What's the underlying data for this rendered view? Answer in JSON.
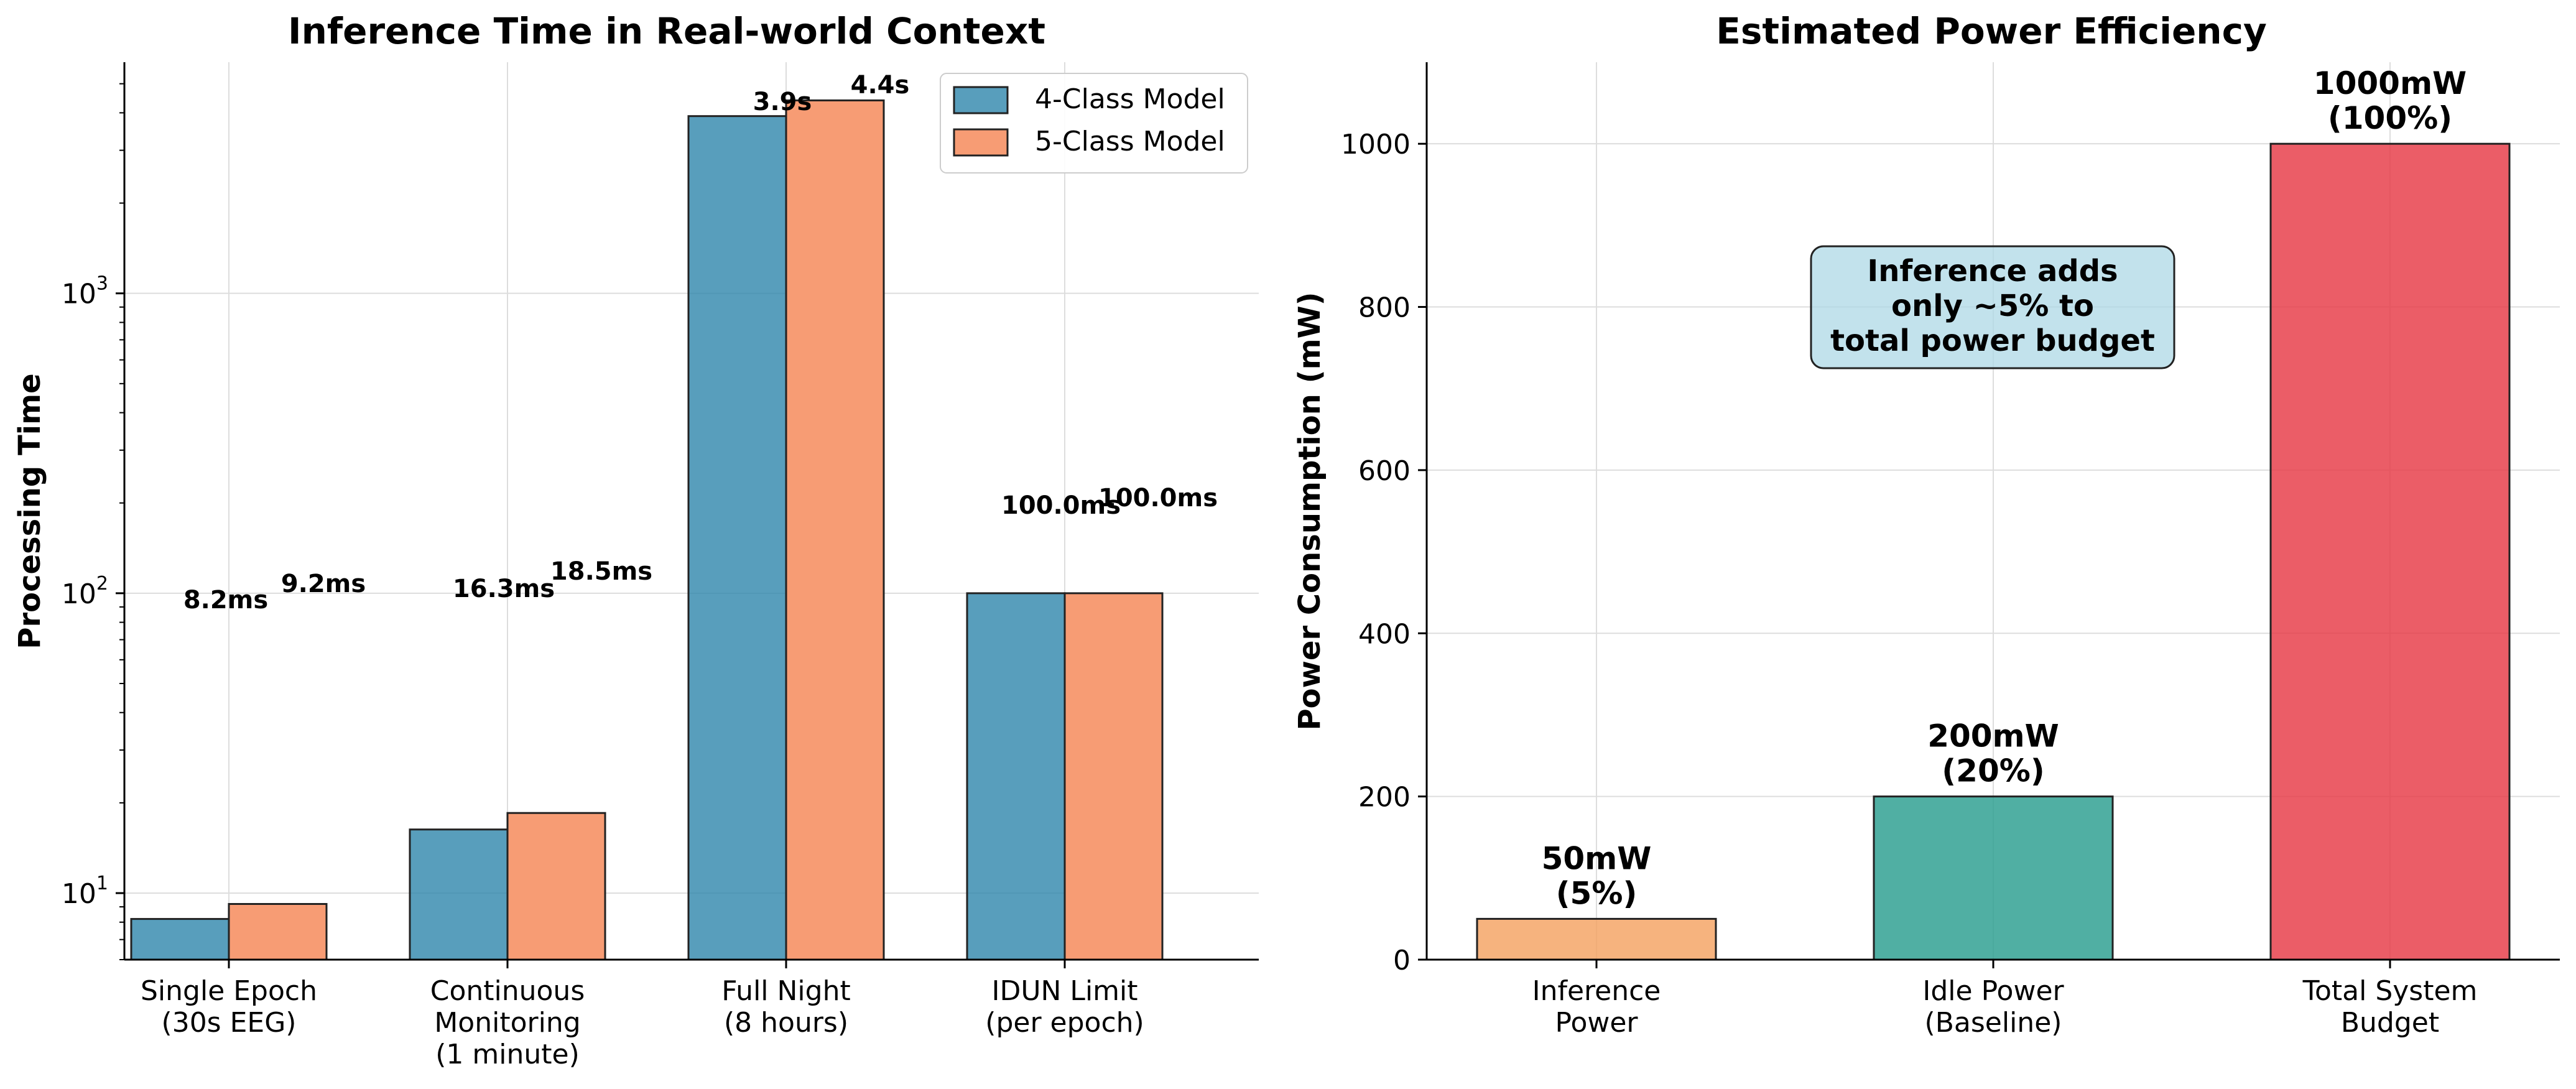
{
  "chart_data": [
    {
      "type": "bar",
      "title": "Inference Time in Real-world Context",
      "ylabel": "Processing Time",
      "xlabel": "",
      "yscale": "log",
      "ylim": [
        6,
        5900
      ],
      "yticks": [
        10,
        100,
        1000
      ],
      "ytick_labels": [
        {
          "base": "10",
          "exp": "1"
        },
        {
          "base": "10",
          "exp": "2"
        },
        {
          "base": "10",
          "exp": "3"
        }
      ],
      "grid": true,
      "legend_position": "top-right",
      "categories": [
        [
          "Single Epoch",
          "(30s EEG)"
        ],
        [
          "Continuous",
          "Monitoring",
          "(1 minute)"
        ],
        [
          "Full Night",
          "(8 hours)"
        ],
        [
          "IDUN Limit",
          "(per epoch)"
        ]
      ],
      "series": [
        {
          "name": "4-Class Model",
          "color": "#2E86AB",
          "values": [
            8.2,
            16.3,
            3900,
            100
          ],
          "data_labels": [
            "8.2ms",
            "16.3ms",
            "3.9s",
            "100.0ms"
          ]
        },
        {
          "name": "5-Class Model",
          "color": "#F79C74",
          "values": [
            9.2,
            18.5,
            4400,
            100
          ],
          "data_labels": [
            "9.2ms",
            "18.5ms",
            "4.4s",
            "100.0ms"
          ]
        }
      ]
    },
    {
      "type": "bar",
      "title": "Estimated Power Efficiency",
      "ylabel": "Power Consumption (mW)",
      "xlabel": "",
      "ylim": [
        0,
        1100
      ],
      "yticks": [
        0,
        200,
        400,
        600,
        800,
        1000
      ],
      "grid": true,
      "categories": [
        [
          "Inference",
          "Power"
        ],
        [
          "Idle Power",
          "(Baseline)"
        ],
        [
          "Total System",
          "Budget"
        ]
      ],
      "values": [
        50,
        200,
        1000
      ],
      "colors": [
        "#F4A261",
        "#2A9D8F",
        "#E63946"
      ],
      "data_labels": [
        [
          "50mW",
          "(5%)"
        ],
        [
          "200mW",
          "(20%)"
        ],
        [
          "1000mW",
          "(100%)"
        ]
      ],
      "annotation": [
        "Inference adds",
        "only ~5% to",
        "total power budget"
      ]
    }
  ]
}
